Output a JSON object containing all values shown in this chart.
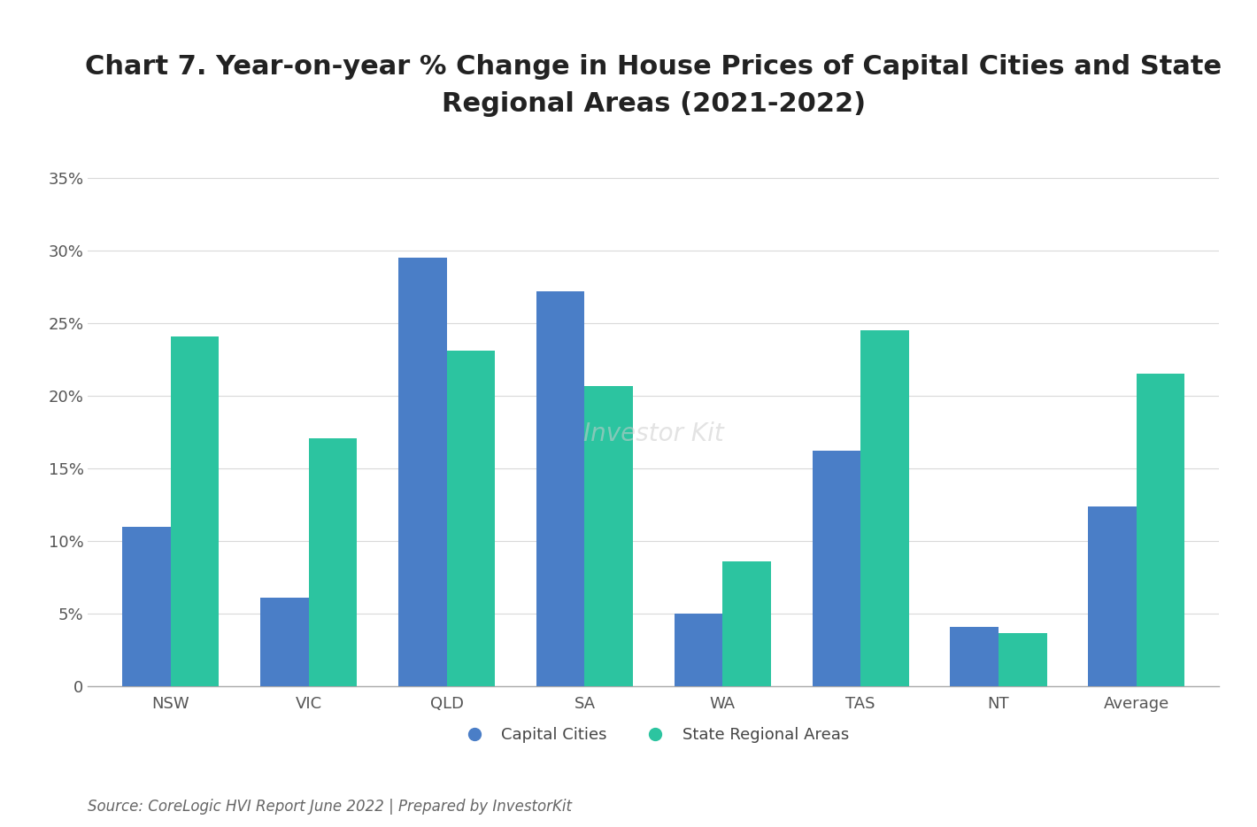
{
  "title_line1": "Chart 7. Year-on-year % Change in House Prices of Capital Cities and State",
  "title_line2": "Regional Areas (2021-2022)",
  "categories": [
    "NSW",
    "VIC",
    "QLD",
    "SA",
    "WA",
    "TAS",
    "NT",
    "Average"
  ],
  "capital_cities": [
    11.0,
    6.1,
    29.5,
    27.2,
    5.0,
    16.2,
    4.1,
    12.4
  ],
  "state_regional": [
    24.1,
    17.1,
    23.1,
    20.7,
    8.6,
    24.5,
    3.7,
    21.5
  ],
  "capital_color": "#4A7EC7",
  "regional_color": "#2CC4A0",
  "background_color": "#ffffff",
  "ylim": [
    0,
    37
  ],
  "yticks": [
    0,
    5,
    10,
    15,
    20,
    25,
    30,
    35
  ],
  "ytick_labels": [
    "0",
    "5%",
    "10%",
    "15%",
    "20%",
    "25%",
    "30%",
    "35%"
  ],
  "legend_capital": "Capital Cities",
  "legend_regional": "State Regional Areas",
  "source_text": "Source: CoreLogic HVI Report June 2022 | Prepared by InvestorKit",
  "watermark": "Investor Kit",
  "title_fontsize": 22,
  "axis_fontsize": 13,
  "legend_fontsize": 13,
  "source_fontsize": 12,
  "bar_width": 0.35,
  "grid_color": "#d0d0d0",
  "grid_alpha": 0.8
}
